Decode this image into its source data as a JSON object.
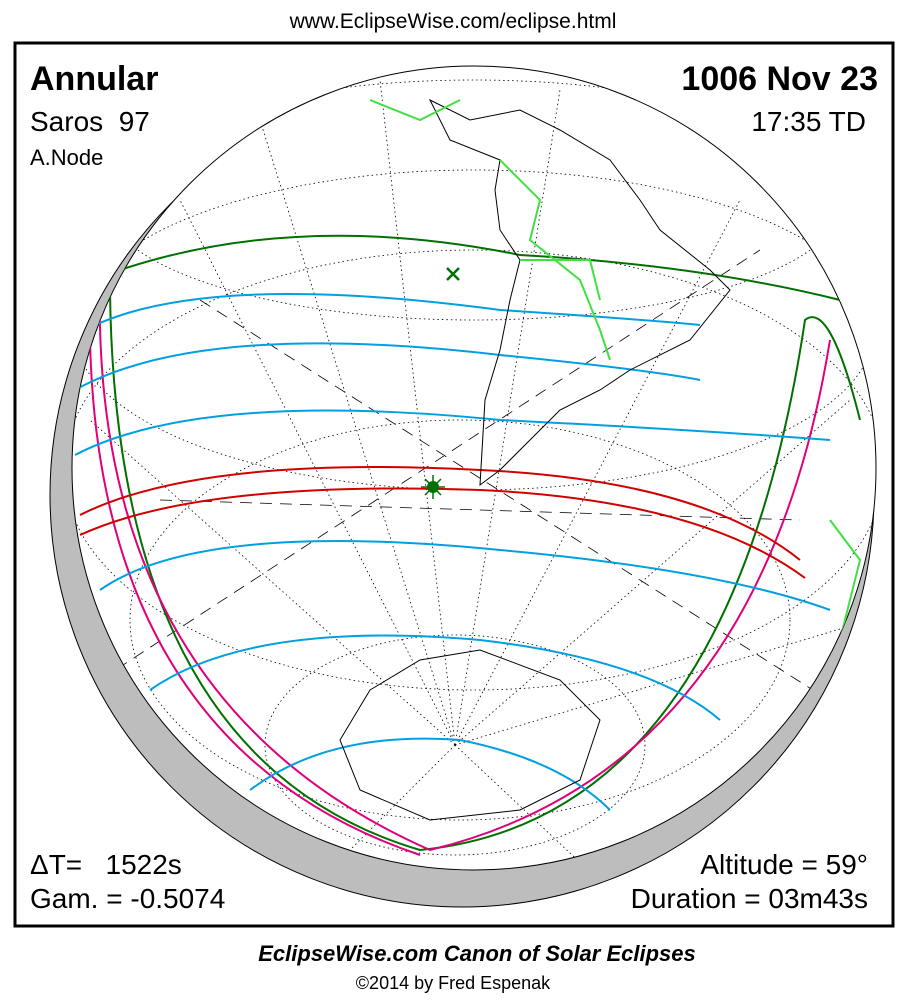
{
  "header": {
    "url": "www.EclipseWise.com/eclipse.html"
  },
  "panel": {
    "eclipse_type": "Annular",
    "date": "1006 Nov 23",
    "saros": "Saros  97",
    "time": "17:35 TD",
    "node": "A.Node",
    "delta_t": "ΔT=   1522s",
    "gamma": "Gam. = -0.5074",
    "altitude": "Altitude = 59°",
    "duration": "Duration = 03m43s"
  },
  "footer": {
    "title": "EclipseWise.com Canon of Solar Eclipses",
    "copyright": "©2014 by Fred Espenak"
  }
}
